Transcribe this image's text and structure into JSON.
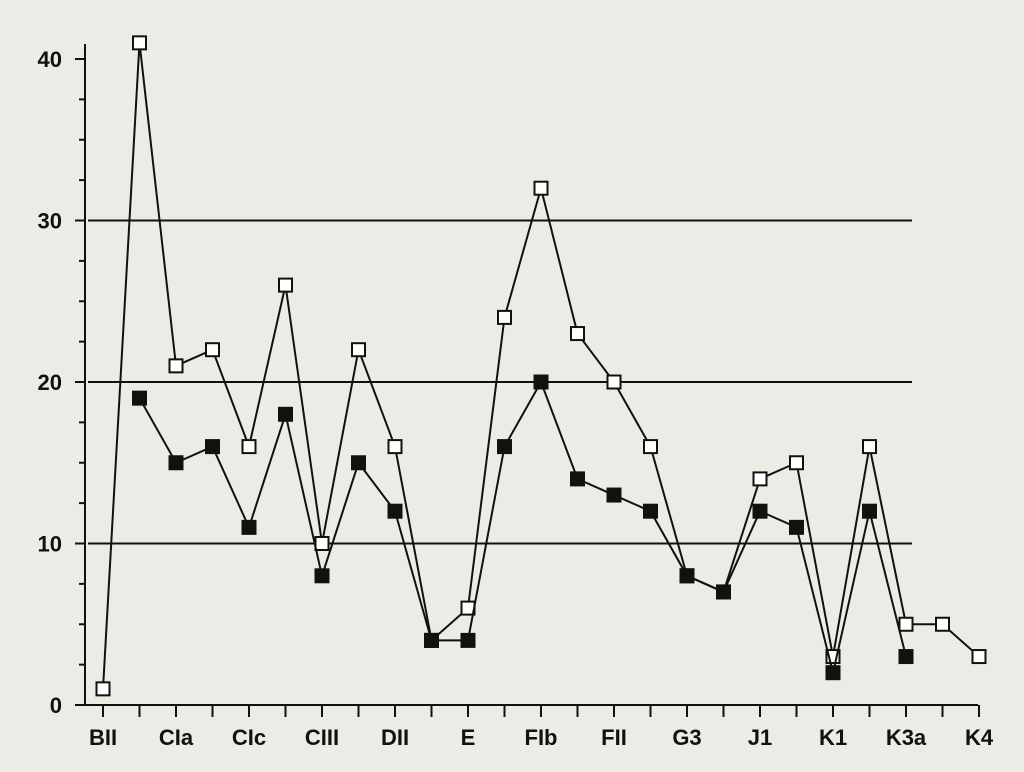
{
  "chart_data": {
    "type": "line",
    "title": "",
    "xlabel": "",
    "ylabel": "",
    "ylim": [
      0,
      40
    ],
    "y_ticks": [
      "0",
      "10",
      "20",
      "30",
      "40"
    ],
    "y_tick_values": [
      0,
      10,
      20,
      30,
      40
    ],
    "grid_lines_at": [
      10,
      20,
      30
    ],
    "categories_count": 25,
    "x_tick_labels": [
      {
        "index": 0,
        "label": "BII"
      },
      {
        "index": 2,
        "label": "CIa"
      },
      {
        "index": 4,
        "label": "CIc"
      },
      {
        "index": 6,
        "label": "CIII"
      },
      {
        "index": 8,
        "label": "DII"
      },
      {
        "index": 10,
        "label": "E"
      },
      {
        "index": 12,
        "label": "FIb"
      },
      {
        "index": 14,
        "label": "FII"
      },
      {
        "index": 16,
        "label": "G3"
      },
      {
        "index": 18,
        "label": "J1"
      },
      {
        "index": 20,
        "label": "K1"
      },
      {
        "index": 22,
        "label": "K3a"
      },
      {
        "index": 24,
        "label": "K4"
      }
    ],
    "series": [
      {
        "marker": "open-square",
        "color": "#111111",
        "points": [
          [
            0,
            1
          ],
          [
            1,
            41
          ],
          [
            2,
            21
          ],
          [
            3,
            22
          ],
          [
            4,
            16
          ],
          [
            5,
            26
          ],
          [
            6,
            10
          ],
          [
            7,
            22
          ],
          [
            8,
            16
          ],
          [
            9,
            4
          ],
          [
            10,
            6
          ],
          [
            11,
            24
          ],
          [
            12,
            32
          ],
          [
            13,
            23
          ],
          [
            14,
            20
          ],
          [
            15,
            16
          ],
          [
            16,
            8
          ],
          [
            17,
            7
          ],
          [
            18,
            14
          ],
          [
            19,
            15
          ],
          [
            20,
            3
          ],
          [
            21,
            16
          ],
          [
            22,
            5
          ],
          [
            23,
            5
          ],
          [
            24,
            3
          ]
        ]
      },
      {
        "marker": "filled-square",
        "color": "#111111",
        "points": [
          [
            1,
            19
          ],
          [
            2,
            15
          ],
          [
            3,
            16
          ],
          [
            4,
            11
          ],
          [
            5,
            18
          ],
          [
            6,
            8
          ],
          [
            7,
            15
          ],
          [
            8,
            12
          ],
          [
            9,
            4
          ],
          [
            10,
            4
          ],
          [
            11,
            16
          ],
          [
            12,
            20
          ],
          [
            13,
            14
          ],
          [
            14,
            13
          ],
          [
            15,
            12
          ],
          [
            16,
            8
          ],
          [
            17,
            7
          ],
          [
            18,
            12
          ],
          [
            19,
            11
          ],
          [
            20,
            2
          ],
          [
            21,
            12
          ],
          [
            22,
            3
          ]
        ]
      }
    ]
  }
}
